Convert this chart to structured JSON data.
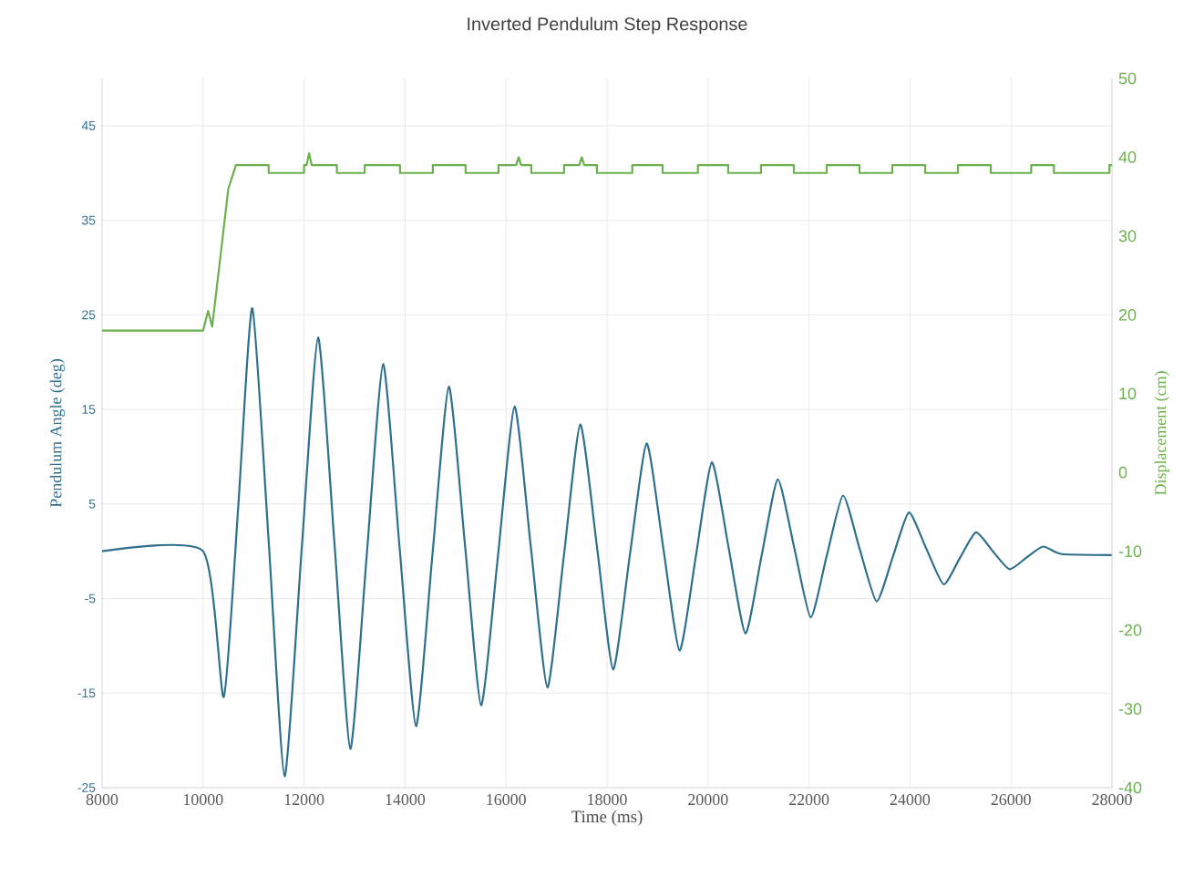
{
  "chart_data": {
    "type": "line",
    "title": "Inverted Pendulum Step Response",
    "xlabel": "Time (ms)",
    "ylabel": "Pendulum Angle (deg)",
    "y2label": "Displacement (cm)",
    "xlim": [
      8000,
      28000
    ],
    "xticks": [
      8000,
      10000,
      12000,
      14000,
      16000,
      18000,
      20000,
      22000,
      24000,
      26000,
      28000
    ],
    "ylim": [
      -25,
      50
    ],
    "yticks": [
      -25,
      -15,
      -5,
      5,
      15,
      25,
      35,
      45
    ],
    "y2lim": [
      -40,
      50
    ],
    "y2ticks": [
      -40,
      -30,
      -20,
      -10,
      0,
      10,
      20,
      30,
      40,
      50
    ],
    "grid": true,
    "series": [
      {
        "color": "#2e6f8e",
        "x": [
          8000,
          10000,
          10410,
          10700,
          10976,
          11300,
          11614,
          11950,
          12277,
          12600,
          12916,
          13240,
          13566,
          13890,
          14217,
          14540,
          14867,
          15190,
          15506,
          15840,
          16169,
          16490,
          16819,
          17145,
          17470,
          17800,
          18121,
          18450,
          18785,
          19110,
          19437,
          19760,
          20077,
          20410,
          20742,
          21060,
          21382,
          21710,
          22034,
          22350,
          22674,
          23000,
          23338,
          23660,
          23978,
          24320,
          24667,
          24990,
          25307,
          25640,
          25971,
          26300,
          26635,
          27000,
          28000
        ],
        "values": [
          0,
          0,
          -15.4,
          5,
          25.7,
          1,
          -23.8,
          0,
          22.6,
          1,
          -20.9,
          -0.5,
          19.8,
          0.5,
          -18.5,
          -0.5,
          17.4,
          0.5,
          -16.3,
          -0.5,
          15.3,
          0.5,
          -14.4,
          -0.5,
          13.4,
          0.5,
          -12.5,
          -0.5,
          11.4,
          0.5,
          -10.5,
          -0.5,
          9.4,
          0.3,
          -8.7,
          -0.5,
          7.6,
          0.3,
          -7.0,
          -0.5,
          5.9,
          0.3,
          -5.3,
          -0.6,
          4.1,
          0.3,
          -3.5,
          -0.7,
          2.0,
          0,
          -1.9,
          -0.7,
          0.5,
          -0.3,
          -0.4
        ]
      },
      {
        "color": "#6ab04c",
        "axis": "y2",
        "x": [
          8000,
          10000,
          10100,
          10180,
          10300,
          10500,
          10650,
          11300,
          11300,
          12000,
          12000,
          12050,
          12100,
          12150,
          12650,
          12650,
          13200,
          13200,
          13900,
          13900,
          14550,
          14550,
          15200,
          15200,
          15850,
          15850,
          16200,
          16250,
          16300,
          16500,
          16500,
          17150,
          17150,
          17450,
          17500,
          17550,
          17800,
          17800,
          18500,
          18500,
          19100,
          19100,
          19800,
          19800,
          20400,
          20400,
          21050,
          21050,
          21700,
          21700,
          22350,
          22350,
          23000,
          23000,
          23650,
          23650,
          24300,
          24300,
          24950,
          24950,
          25600,
          25600,
          26400,
          26400,
          26850,
          26850,
          27950,
          27950,
          28000
        ],
        "values": [
          18,
          18,
          20.5,
          18.5,
          25,
          36,
          39,
          39,
          38,
          38,
          39,
          39,
          40.5,
          39,
          39,
          38,
          38,
          39,
          39,
          38,
          38,
          39,
          39,
          38,
          38,
          39,
          39,
          40,
          39,
          39,
          38,
          38,
          39,
          39,
          40,
          39,
          39,
          38,
          38,
          39,
          39,
          38,
          38,
          39,
          39,
          38,
          38,
          39,
          39,
          38,
          38,
          39,
          39,
          38,
          38,
          39,
          39,
          38,
          38,
          39,
          39,
          38,
          38,
          39,
          39,
          38,
          38,
          39,
          39
        ]
      }
    ]
  }
}
